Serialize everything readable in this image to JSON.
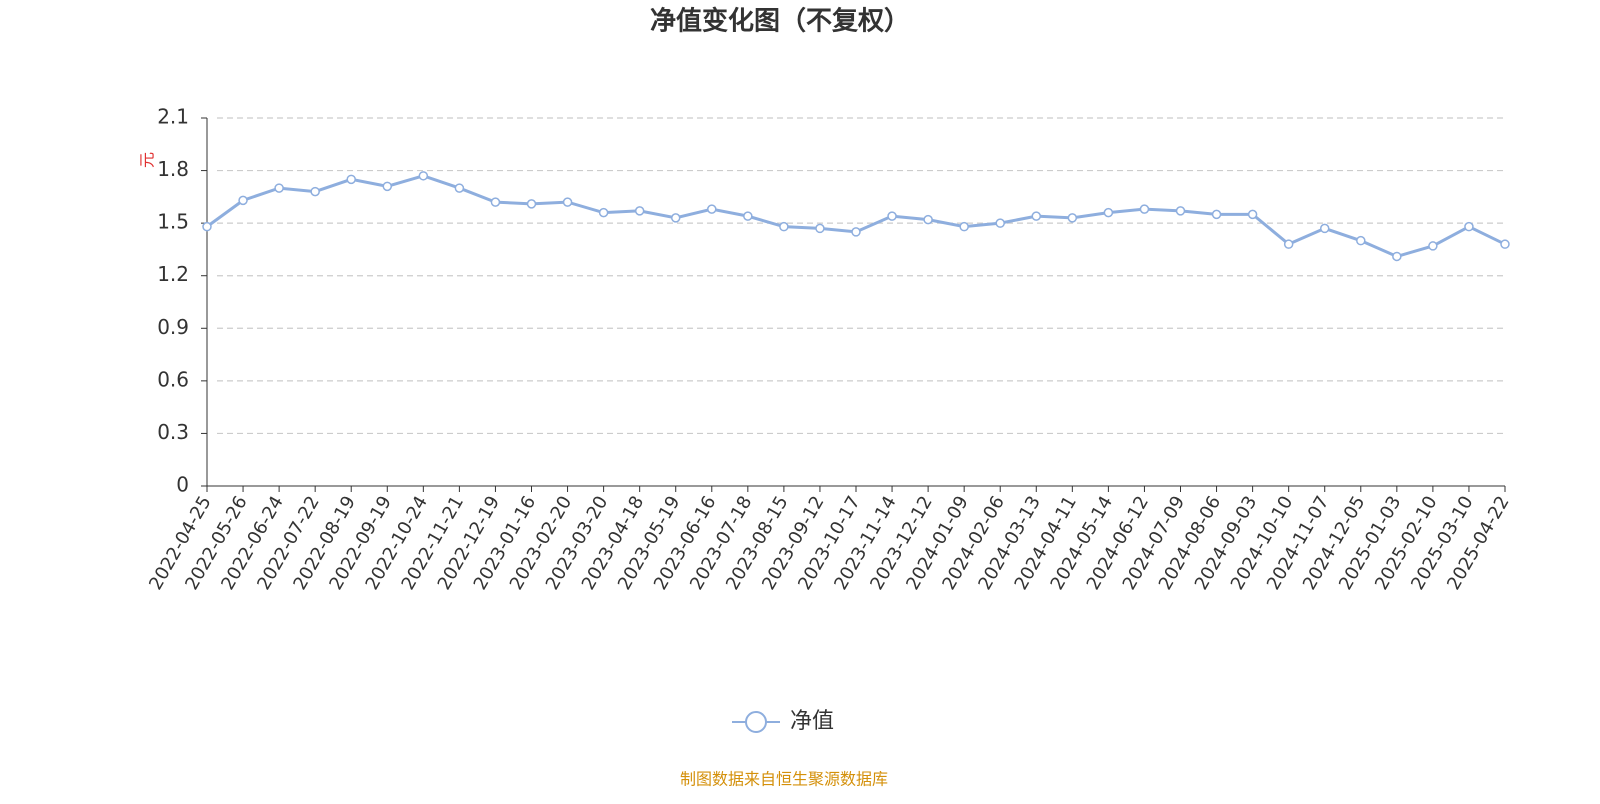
{
  "chart_data": {
    "type": "line",
    "title": "净值变化图（不复权）",
    "y_label": "元",
    "categories": [
      "2022-04-25",
      "2022-05-26",
      "2022-06-24",
      "2022-07-22",
      "2022-08-19",
      "2022-09-19",
      "2022-10-24",
      "2022-11-21",
      "2022-12-19",
      "2023-01-16",
      "2023-02-20",
      "2023-03-20",
      "2023-04-18",
      "2023-05-19",
      "2023-06-16",
      "2023-07-18",
      "2023-08-15",
      "2023-09-12",
      "2023-10-17",
      "2023-11-14",
      "2023-12-12",
      "2024-01-09",
      "2024-02-06",
      "2024-03-13",
      "2024-04-11",
      "2024-05-14",
      "2024-06-12",
      "2024-07-09",
      "2024-08-06",
      "2024-09-03",
      "2024-10-10",
      "2024-11-07",
      "2024-12-05",
      "2025-01-03",
      "2025-02-10",
      "2025-03-10",
      "2025-04-22"
    ],
    "series": [
      {
        "name": "净值",
        "color": "#8eaede",
        "values": [
          1.48,
          1.63,
          1.7,
          1.68,
          1.75,
          1.71,
          1.77,
          1.7,
          1.62,
          1.61,
          1.62,
          1.56,
          1.57,
          1.53,
          1.58,
          1.54,
          1.48,
          1.47,
          1.45,
          1.54,
          1.52,
          1.48,
          1.5,
          1.54,
          1.53,
          1.56,
          1.58,
          1.57,
          1.55,
          1.55,
          1.38,
          1.47,
          1.4,
          1.31,
          1.37,
          1.48,
          1.38
        ]
      }
    ],
    "ylim": [
      0,
      2.1
    ],
    "yticks": [
      0,
      0.3,
      0.6,
      0.9,
      1.2,
      1.5,
      1.8,
      2.1
    ],
    "grid": true,
    "footer": "制图数据来自恒生聚源数据库"
  }
}
